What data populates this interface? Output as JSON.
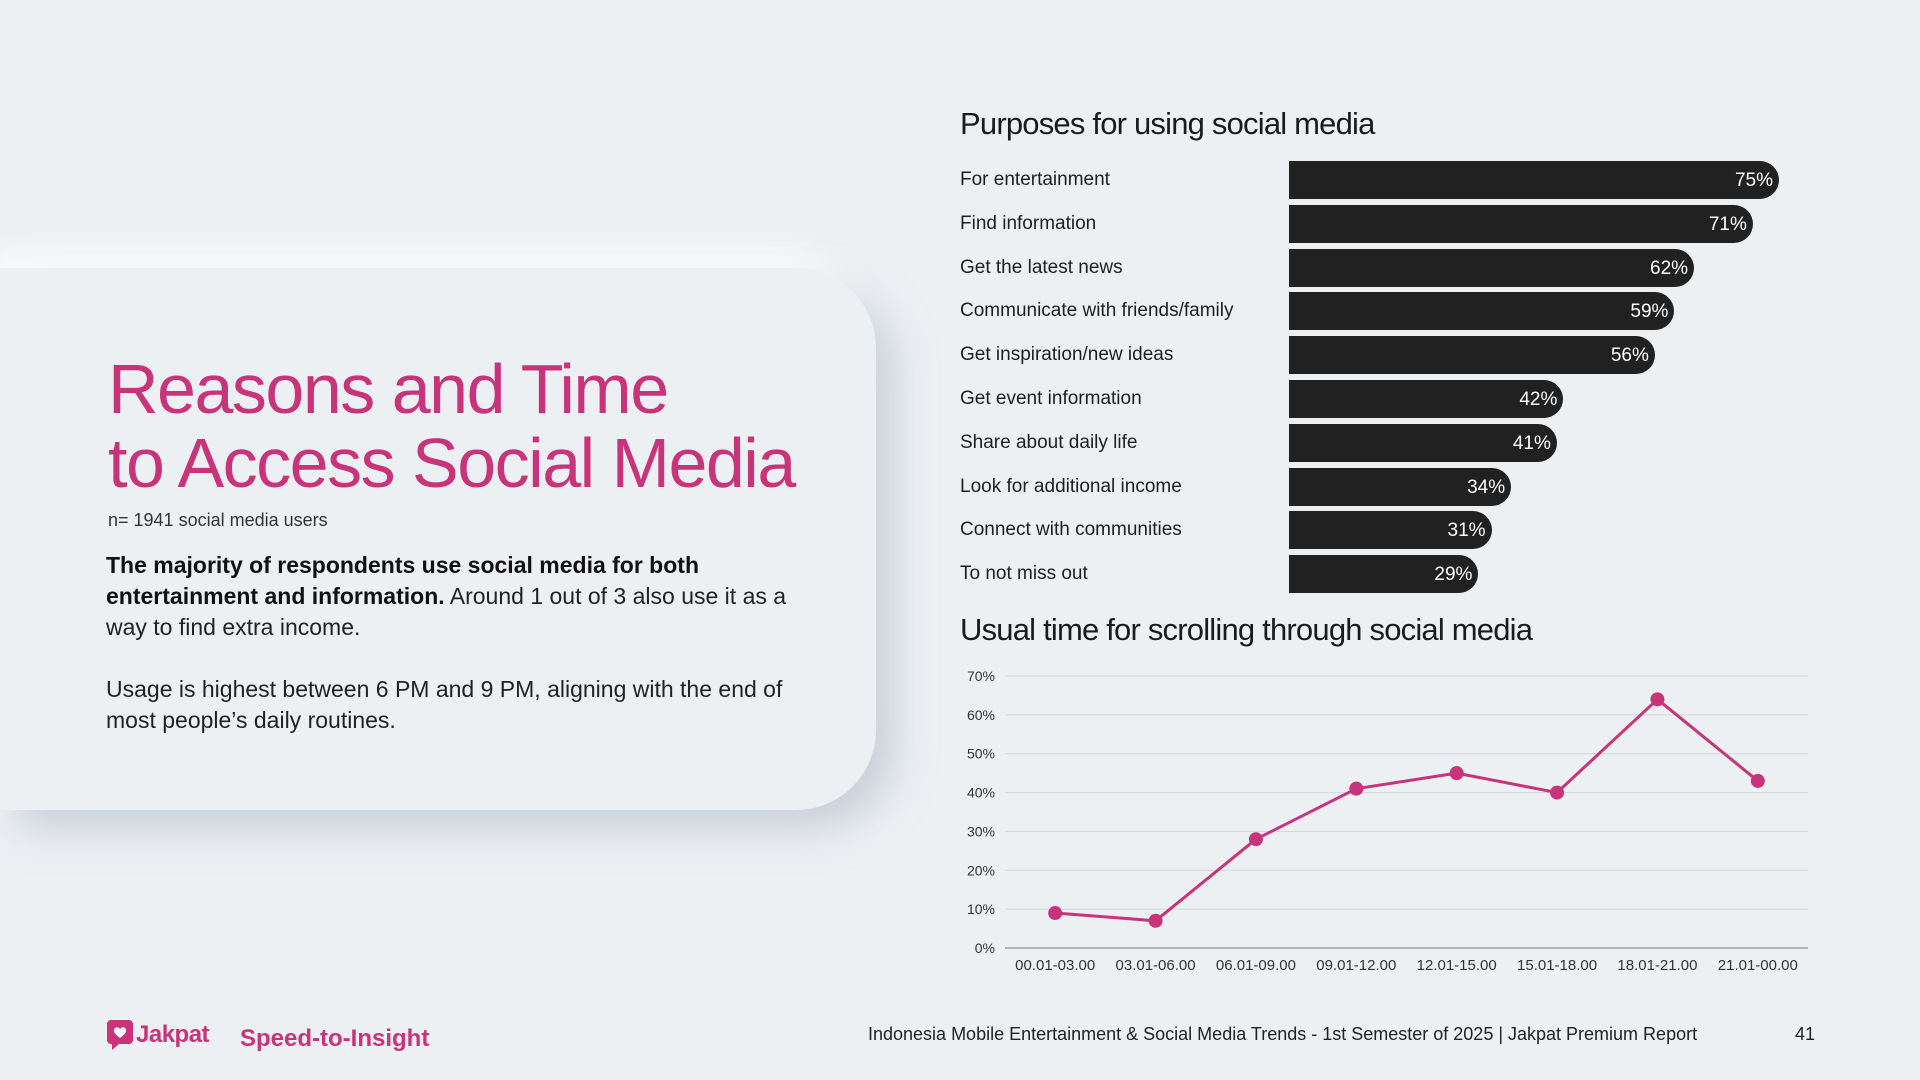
{
  "slide": {
    "title_line1": "Reasons and Time",
    "title_line2": "to Access Social Media",
    "sample": "n= 1941 social media users",
    "para1_bold": "The majority of respondents use social media for both entertainment and information.",
    "para1_rest": " Around 1 out of 3 also use it as a way to find extra income.",
    "para2": "Usage is highest between 6 PM and 9 PM, aligning with the end of most people’s daily routines."
  },
  "footer": {
    "brand": "Jakpat",
    "tagline": "Speed-to-Insight",
    "report": "Indonesia Mobile Entertainment & Social Media Trends - 1st Semester of 2025 | Jakpat Premium Report",
    "page": "41"
  },
  "colors": {
    "accent": "#c8337a",
    "bar": "#212121",
    "grid": "#d3d7dc"
  },
  "chart_data": [
    {
      "type": "bar",
      "orientation": "horizontal",
      "title": "Purposes for using social media",
      "categories": [
        "For entertainment",
        "Find information",
        "Get the latest news",
        "Communicate with friends/family",
        "Get inspiration/new ideas",
        "Get event information",
        "Share about daily life",
        "Look for additional income",
        "Connect with communities",
        "To not miss out"
      ],
      "values": [
        75,
        71,
        62,
        59,
        56,
        42,
        41,
        34,
        31,
        29
      ],
      "labels": [
        "75%",
        "71%",
        "62%",
        "59%",
        "56%",
        "42%",
        "41%",
        "34%",
        "31%",
        "29%"
      ],
      "unit": "%"
    },
    {
      "type": "line",
      "title": "Usual time for scrolling through social media",
      "categories": [
        "00.01-03.00",
        "03.01-06.00",
        "06.01-09.00",
        "09.01-12.00",
        "12.01-15.00",
        "15.01-18.00",
        "18.01-21.00",
        "21.01-00.00"
      ],
      "values": [
        9,
        7,
        28,
        41,
        45,
        40,
        64,
        43
      ],
      "ylim": [
        0,
        70
      ],
      "yticks": [
        "0%",
        "10%",
        "20%",
        "30%",
        "40%",
        "50%",
        "60%",
        "70%"
      ],
      "grid": true
    }
  ]
}
